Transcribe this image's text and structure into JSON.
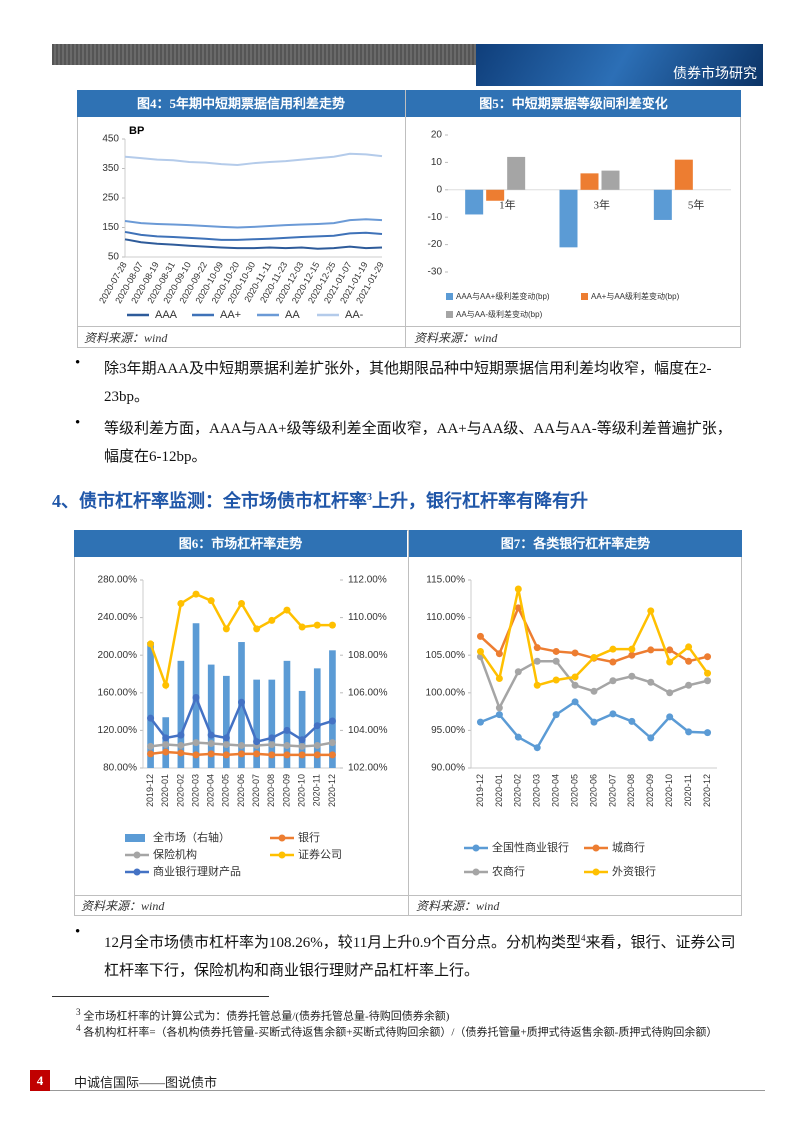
{
  "header": {
    "title": "债券市场研究"
  },
  "figures": [
    {
      "title": "图4：5年期中短期票据信用利差走势",
      "source": "资料来源：wind"
    },
    {
      "title": "图5：中短期票据等级间利差变化",
      "source": "资料来源：wind"
    },
    {
      "title": "图6：市场杠杆率走势",
      "source": "资料来源：wind"
    },
    {
      "title": "图7：各类银行杠杆率走势",
      "source": "资料来源：wind"
    }
  ],
  "paragraphs": [
    {
      "text": "除3年期AAA及中短期票据利差扩张外，其他期限品种中短期票据信用利差均收窄，幅度在2-23bp。"
    },
    {
      "text": "等级利差方面，AAA与AA+级等级利差全面收窄，AA+与AA级、AA与AA-等级利差普遍扩张，幅度在6-12bp。"
    },
    {
      "before": "12月全市场债市杠杆率为108.26%，较11月上升0.9个百分点。分机构类型",
      "sup": "4",
      "after": "来看，银行、证券公司杠杆率下行，保险机构和商业银行理财产品杠杆率上行。"
    }
  ],
  "section": {
    "before": "4、债市杠杆率监测：全市场债市杠杆率",
    "sup": "3",
    "after": "上升，银行杠杆率有降有升"
  },
  "footnotes": [
    {
      "num": "3",
      "text": "全市场杠杆率的计算公式为：债券托管总量/(债券托管总量-待购回债券余额)"
    },
    {
      "num": "4",
      "text": "各机构杠杆率=（各机构债券托管量-买断式待返售余额+买断式待购回余额）/（债券托管量+质押式待返售余额-质押式待购回余额）"
    }
  ],
  "footer": {
    "page": "4",
    "text": "中诚信国际——图说债市"
  },
  "chart_data": [
    {
      "type": "line",
      "y_label": "BP",
      "categories": [
        "2020-07-28",
        "2020-08-07",
        "2020-08-19",
        "2020-08-31",
        "2020-09-10",
        "2020-09-22",
        "2020-10-09",
        "2020-10-20",
        "2020-10-30",
        "2020-11-11",
        "2020-11-23",
        "2020-12-03",
        "2020-12-15",
        "2020-12-25",
        "2021-01-07",
        "2021-01-19",
        "2021-01-29"
      ],
      "ylim": [
        50,
        450
      ],
      "yticks": [
        50,
        150,
        250,
        350,
        450
      ],
      "series": [
        {
          "name": "AAA",
          "color": "#2e5b9a",
          "values": [
            110,
            100,
            95,
            92,
            88,
            85,
            82,
            80,
            80,
            82,
            80,
            82,
            78,
            80,
            85,
            80,
            82
          ]
        },
        {
          "name": "AA+",
          "color": "#3f72b8",
          "values": [
            135,
            125,
            120,
            118,
            115,
            112,
            108,
            108,
            110,
            112,
            115,
            118,
            120,
            122,
            130,
            132,
            128
          ]
        },
        {
          "name": "AA",
          "color": "#6b9ad6",
          "values": [
            172,
            165,
            162,
            160,
            158,
            155,
            152,
            150,
            152,
            155,
            158,
            160,
            162,
            165,
            175,
            178,
            175
          ]
        },
        {
          "name": "AA-",
          "color": "#b4cbea",
          "values": [
            390,
            385,
            380,
            378,
            372,
            370,
            365,
            362,
            368,
            372,
            375,
            380,
            385,
            390,
            400,
            398,
            392
          ]
        }
      ]
    },
    {
      "type": "bar",
      "categories": [
        "1年",
        "3年",
        "5年"
      ],
      "ylim": [
        -30,
        20
      ],
      "yticks": [
        -30,
        -20,
        -10,
        0,
        10,
        20
      ],
      "series": [
        {
          "name": "AAA与AA+级利差变动(bp)",
          "color": "#5b9bd5",
          "values": [
            -9,
            -21,
            -11
          ]
        },
        {
          "name": "AA+与AA级利差变动(bp)",
          "color": "#ed7d31",
          "values": [
            -4,
            6,
            11
          ]
        },
        {
          "name": "AA与AA-级利差变动(bp)",
          "color": "#a5a5a5",
          "values": [
            12,
            7,
            0
          ]
        }
      ]
    },
    {
      "type": "combo",
      "categories": [
        "2019-12",
        "2020-01",
        "2020-02",
        "2020-03",
        "2020-04",
        "2020-05",
        "2020-06",
        "2020-07",
        "2020-08",
        "2020-09",
        "2020-10",
        "2020-11",
        "2020-12"
      ],
      "ylim": [
        80,
        280
      ],
      "yticks": [
        {
          "value": 80,
          "label": "80.00%"
        },
        {
          "value": 120,
          "label": "120.00%"
        },
        {
          "value": 160,
          "label": "160.00%"
        },
        {
          "value": 200,
          "label": "200.00%"
        },
        {
          "value": 240,
          "label": "240.00%"
        },
        {
          "value": 280,
          "label": "280.00%"
        }
      ],
      "y2lim": [
        102,
        112
      ],
      "y2ticks": [
        {
          "value": 102,
          "label": "102.00%"
        },
        {
          "value": 104,
          "label": "104.00%"
        },
        {
          "value": 106,
          "label": "106.00%"
        },
        {
          "value": 108,
          "label": "108.00%"
        },
        {
          "value": 110,
          "label": "110.00%"
        },
        {
          "value": 112,
          "label": "112.00%"
        }
      ],
      "series": [
        {
          "name": "全市场（右轴）",
          "type": "bar",
          "axis": "y2",
          "color": "#5b9bd5",
          "values": [
            108.7,
            104.7,
            107.7,
            109.7,
            107.5,
            106.9,
            108.7,
            106.7,
            106.7,
            107.7,
            106.1,
            107.3,
            108.26
          ]
        },
        {
          "name": "银行",
          "type": "line",
          "color": "#ed7d31",
          "values": [
            95,
            97,
            96,
            94,
            95,
            94,
            95,
            95,
            94,
            94,
            94,
            94,
            94
          ]
        },
        {
          "name": "保险机构",
          "type": "line",
          "color": "#a5a5a5",
          "values": [
            103,
            105,
            104,
            107,
            106,
            105,
            104,
            104,
            105,
            104,
            103,
            104,
            107
          ]
        },
        {
          "name": "证券公司",
          "type": "line",
          "color": "#ffc000",
          "values": [
            212,
            168,
            255,
            265,
            258,
            228,
            255,
            228,
            237,
            248,
            230,
            232,
            232
          ]
        },
        {
          "name": "商业银行理财产品",
          "type": "line",
          "color": "#4472c4",
          "values": [
            133,
            112,
            115,
            155,
            115,
            112,
            150,
            108,
            112,
            120,
            110,
            125,
            130
          ]
        }
      ]
    },
    {
      "type": "line",
      "markers": true,
      "categories": [
        "2019-12",
        "2020-01",
        "2020-02",
        "2020-03",
        "2020-04",
        "2020-05",
        "2020-06",
        "2020-07",
        "2020-08",
        "2020-09",
        "2020-10",
        "2020-11",
        "2020-12"
      ],
      "ylim": [
        90,
        115
      ],
      "yticks": [
        {
          "value": 90,
          "label": "90.00%"
        },
        {
          "value": 95,
          "label": "95.00%"
        },
        {
          "value": 100,
          "label": "100.00%"
        },
        {
          "value": 105,
          "label": "105.00%"
        },
        {
          "value": 110,
          "label": "110.00%"
        },
        {
          "value": 115,
          "label": "115.00%"
        }
      ],
      "series": [
        {
          "name": "全国性商业银行",
          "color": "#5b9bd5",
          "values": [
            96.1,
            97.1,
            94.1,
            92.7,
            97.1,
            98.8,
            96.1,
            97.2,
            96.2,
            94.0,
            96.8,
            94.8,
            94.7
          ]
        },
        {
          "name": "城商行",
          "color": "#ed7d31",
          "values": [
            107.5,
            105.2,
            111.3,
            106.0,
            105.5,
            105.3,
            104.6,
            104.1,
            105.0,
            105.7,
            105.7,
            104.2,
            104.8
          ]
        },
        {
          "name": "农商行",
          "color": "#a5a5a5",
          "values": [
            104.8,
            98.0,
            102.8,
            104.2,
            104.2,
            101.0,
            100.2,
            101.6,
            102.2,
            101.4,
            100.0,
            101.0,
            101.6
          ]
        },
        {
          "name": "外资银行",
          "color": "#ffc000",
          "values": [
            105.5,
            101.9,
            113.8,
            101.0,
            101.7,
            102.1,
            104.7,
            105.8,
            105.8,
            110.9,
            104.1,
            106.1,
            102.6
          ]
        }
      ]
    }
  ]
}
